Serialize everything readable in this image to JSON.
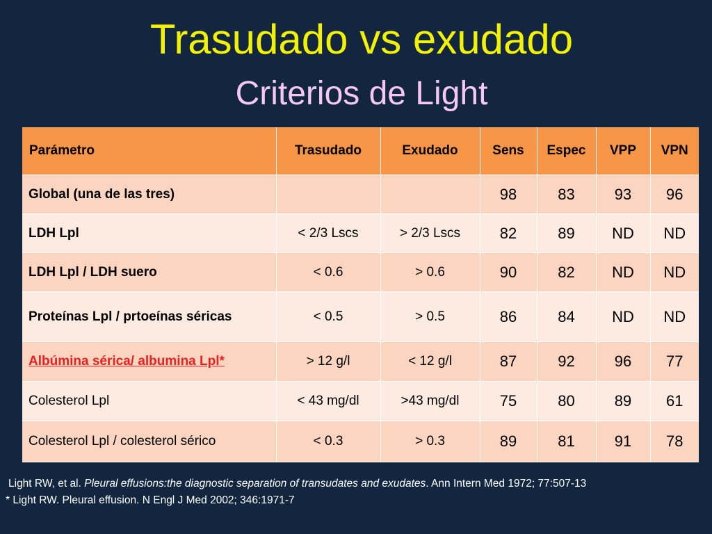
{
  "slide": {
    "title": "Trasudado vs exudado",
    "subtitle": "Criterios de Light"
  },
  "table": {
    "headers": [
      "Parámetro",
      "Trasudado",
      "Exudado",
      "Sens",
      "Espec",
      "VPP",
      "VPN"
    ],
    "rows": [
      {
        "param": "Global  (una de las tres)",
        "trasudado": "",
        "exudado": "",
        "sens": "98",
        "espec": "83",
        "vpp": "93",
        "vpn": "96"
      },
      {
        "param": "LDH Lpl",
        "trasudado": "< 2/3  Lscs",
        "exudado": "> 2/3 Lscs",
        "sens": "82",
        "espec": "89",
        "vpp": "ND",
        "vpn": "ND"
      },
      {
        "param": "LDH Lpl / LDH suero",
        "trasudado": "< 0.6",
        "exudado": "> 0.6",
        "sens": "90",
        "espec": "82",
        "vpp": "ND",
        "vpn": "ND"
      },
      {
        "param": "Proteínas Lpl / prtoeínas séricas",
        "trasudado": "< 0.5",
        "exudado": "> 0.5",
        "sens": "86",
        "espec": "84",
        "vpp": "ND",
        "vpn": "ND"
      },
      {
        "param": "Albúmina sérica/ albumina Lpl*",
        "trasudado": "> 12 g/l",
        "exudado": "< 12 g/l",
        "sens": "87",
        "espec": "92",
        "vpp": "96",
        "vpn": "77"
      },
      {
        "param": "Colesterol Lpl",
        "trasudado": "< 43 mg/dl",
        "exudado": ">43 mg/dl",
        "sens": "75",
        "espec": "80",
        "vpp": "89",
        "vpn": "61"
      },
      {
        "param": "Colesterol Lpl / colesterol sérico",
        "trasudado": "< 0.3",
        "exudado": "> 0.3",
        "sens": "89",
        "espec": "81",
        "vpp": "91",
        "vpn": "78"
      }
    ],
    "colors": {
      "header": "#f79646",
      "row_dark": "#fbd5c0",
      "row_light": "#fdeae0",
      "highlight_text": "#e82020"
    }
  },
  "references": {
    "ref1_prefix": "Light RW, et al. ",
    "ref1_title": "Pleural effusions:the diagnostic separation of transudates and exudates",
    "ref1_suffix": ". Ann Intern Med 1972; 77:507-13",
    "ref2": "* Light RW. Pleural effusion. N Engl J Med 2002; 346:1971-7"
  },
  "colors": {
    "background": "#13263f",
    "title": "#f2f200",
    "subtitle": "#f5c8f2"
  }
}
